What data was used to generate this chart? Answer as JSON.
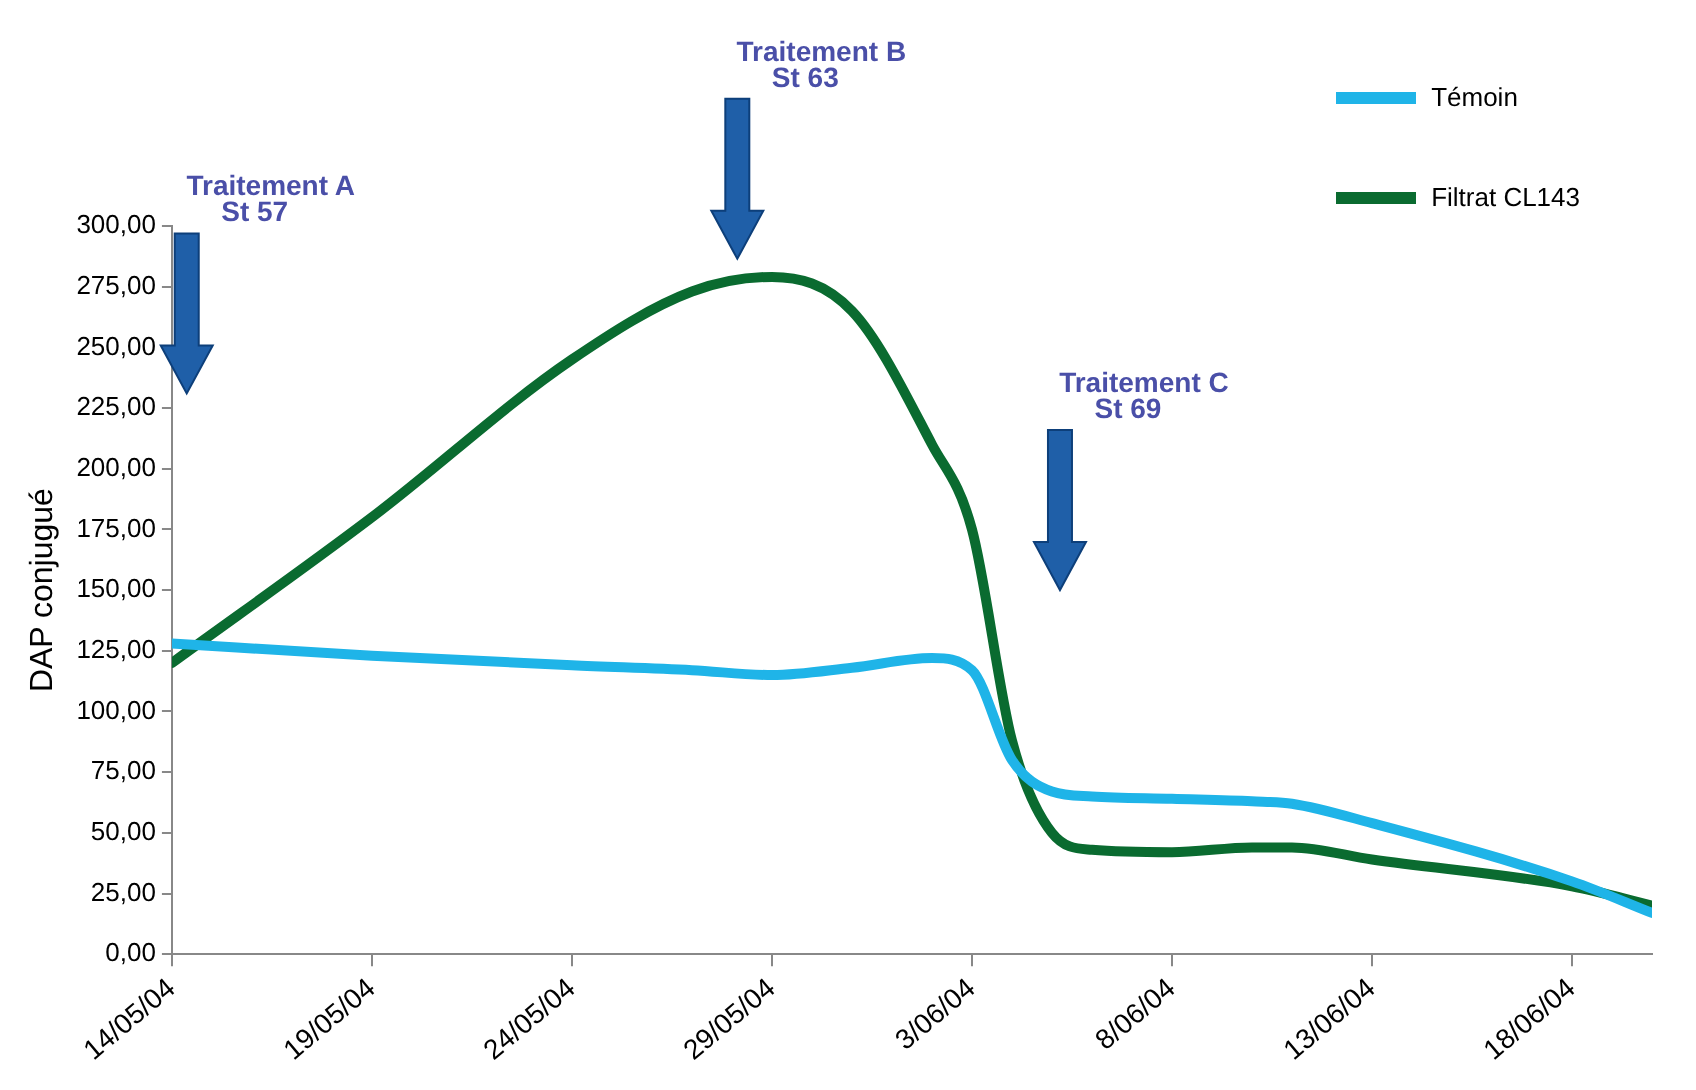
{
  "chart_data": {
    "type": "line",
    "ylabel": "DAP conjugué",
    "ylim": [
      0,
      300
    ],
    "yticks": [
      {
        "value": 0,
        "label": "0,00"
      },
      {
        "value": 25,
        "label": "25,00"
      },
      {
        "value": 50,
        "label": "50,00"
      },
      {
        "value": 75,
        "label": "75,00"
      },
      {
        "value": 100,
        "label": "100,00"
      },
      {
        "value": 125,
        "label": "125,00"
      },
      {
        "value": 150,
        "label": "150,00"
      },
      {
        "value": 175,
        "label": "175,00"
      },
      {
        "value": 200,
        "label": "200,00"
      },
      {
        "value": 225,
        "label": "225,00"
      },
      {
        "value": 250,
        "label": "250,00"
      },
      {
        "value": 275,
        "label": "275,00"
      },
      {
        "value": 300,
        "label": "300,00"
      }
    ],
    "xlim": [
      "--05-14",
      "--06-20"
    ],
    "xticks": [
      {
        "value": "--05-14",
        "label": "14/05/04"
      },
      {
        "value": "--05-19",
        "label": "19/05/04"
      },
      {
        "value": "--05-24",
        "label": "24/05/04"
      },
      {
        "value": "--05-29",
        "label": "29/05/04"
      },
      {
        "value": "--06-03",
        "label": "3/06/04"
      },
      {
        "value": "--06-08",
        "label": "8/06/04"
      },
      {
        "value": "--06-13",
        "label": "13/06/04"
      },
      {
        "value": "--06-18",
        "label": "18/06/04"
      }
    ],
    "x": [
      "--05-14",
      "--05-19",
      "--05-24",
      "--05-27",
      "--05-29",
      "--05-31",
      "--06-02",
      "--06-03",
      "--06-04",
      "--06-05",
      "--06-06",
      "--06-08",
      "--06-10",
      "--06-11",
      "--06-13",
      "--06-18",
      "--06-20"
    ],
    "series": [
      {
        "name": "Témoin",
        "color": "#1fb4e8",
        "values": [
          128,
          123,
          119,
          117,
          115,
          118,
          122,
          117,
          80,
          67,
          65,
          64,
          63,
          62,
          54,
          30,
          17
        ]
      },
      {
        "name": "Filtrat CL143",
        "color": "#0a6b30",
        "values": [
          120,
          180,
          245,
          273,
          279,
          265,
          210,
          175,
          88,
          50,
          43,
          42,
          44,
          44,
          39,
          28,
          20
        ]
      }
    ],
    "annotations": [
      "Traitement A\nSt 57",
      "Traitement B\nSt 63",
      "Traitement C\nSt 69"
    ],
    "legend": "top right",
    "grid": false,
    "marker": "none",
    "line_style": "solid"
  }
}
